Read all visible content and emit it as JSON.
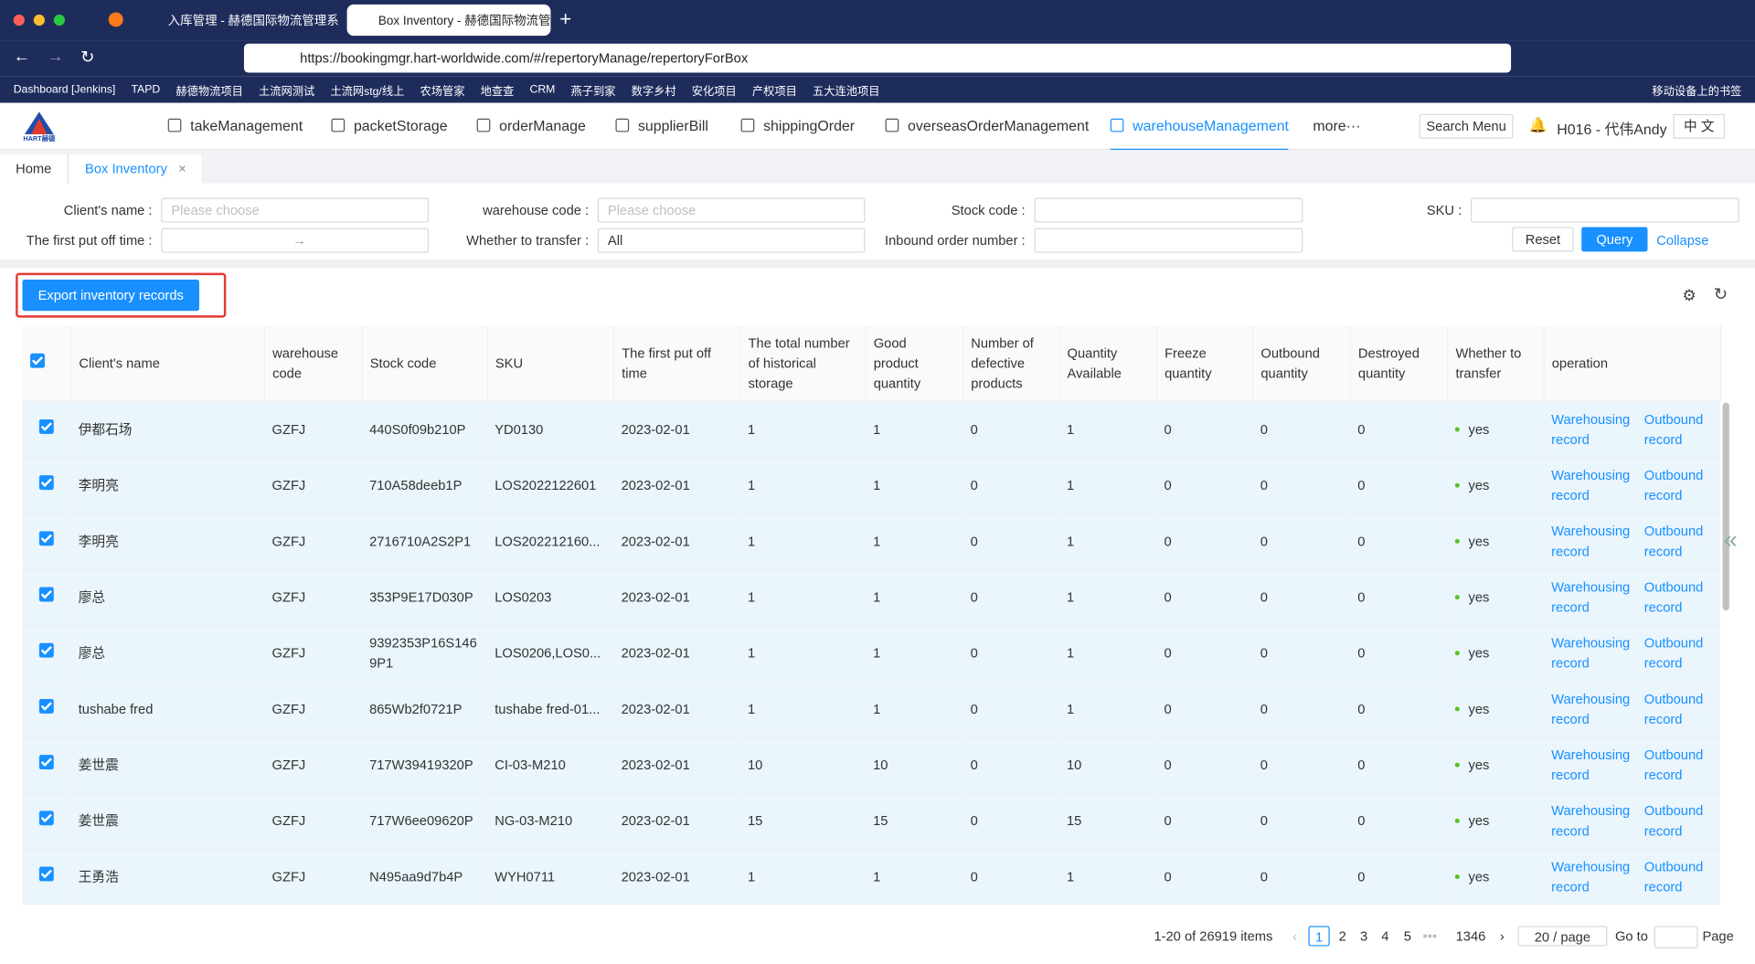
{
  "browser": {
    "tabs": [
      "入库管理 - 赫德国际物流管理系统",
      "Box Inventory - 赫德国际物流管理系统"
    ],
    "url": "https://bookingmgr.hart-worldwide.com/#/repertoryManage/repertoryForBox",
    "bookmarks": [
      "Dashboard [Jenkins]",
      "TAPD",
      "赫德物流项目",
      "土流网测试",
      "土流网stg/线上",
      "农场管家",
      "地查查",
      "CRM",
      "燕子到家",
      "数字乡村",
      "安化项目",
      "产权项目",
      "五大连池项目"
    ],
    "mobile_bookmarks": "移动设备上的书签"
  },
  "nav": {
    "logo": "HART赫德",
    "items": [
      "takeManagement",
      "packetStorage",
      "orderManage",
      "supplierBill",
      "shippingOrder",
      "overseasOrderManagement",
      "warehouseManagement",
      "more···"
    ],
    "active": "warehouseManagement",
    "search": "Search Menu",
    "user": "H016 - 代伟Andy",
    "lang": "中 文"
  },
  "page_tabs": [
    "Home",
    "Box Inventory"
  ],
  "filters": {
    "client_label": "Client's name :",
    "client_placeholder": "Please choose",
    "warehouse_label": "warehouse code :",
    "warehouse_placeholder": "Please choose",
    "stock_label": "Stock code :",
    "sku_label": "SKU :",
    "time_label": "The first put off time :",
    "transfer_label": "Whether to transfer :",
    "transfer_value": "All",
    "inbound_label": "Inbound order number :",
    "reset": "Reset",
    "query": "Query",
    "collapse": "Collapse"
  },
  "export_button": "Export inventory records",
  "table": {
    "headers": [
      "Client's name",
      "warehouse code",
      "Stock code",
      "SKU",
      "The first put off time",
      "The total number of historical storage",
      "Good product quantity",
      "Number of defective products",
      "Quantity Available",
      "Freeze quantity",
      "Outbound quantity",
      "Destroyed quantity",
      "Whether to transfer",
      "operation"
    ],
    "operations": [
      "Warehousing record",
      "Outbound record"
    ],
    "rows": [
      [
        "伊都石场",
        "GZFJ",
        "440S0f09b210P",
        "YD0130",
        "2023-02-01",
        "1",
        "1",
        "0",
        "1",
        "0",
        "0",
        "0",
        "yes"
      ],
      [
        "李明亮",
        "GZFJ",
        "710A58deeb1P",
        "LOS2022122601",
        "2023-02-01",
        "1",
        "1",
        "0",
        "1",
        "0",
        "0",
        "0",
        "yes"
      ],
      [
        "李明亮",
        "GZFJ",
        "2716710A2S2P1",
        "LOS202212160...",
        "2023-02-01",
        "1",
        "1",
        "0",
        "1",
        "0",
        "0",
        "0",
        "yes"
      ],
      [
        "廖总",
        "GZFJ",
        "353P9E17D030P",
        "LOS0203",
        "2023-02-01",
        "1",
        "1",
        "0",
        "1",
        "0",
        "0",
        "0",
        "yes"
      ],
      [
        "廖总",
        "GZFJ",
        "9392353P16S1469P1",
        "LOS0206,LOS0...",
        "2023-02-01",
        "1",
        "1",
        "0",
        "1",
        "0",
        "0",
        "0",
        "yes"
      ],
      [
        "tushabe fred",
        "GZFJ",
        "865Wb2f0721P",
        "tushabe fred-01...",
        "2023-02-01",
        "1",
        "1",
        "0",
        "1",
        "0",
        "0",
        "0",
        "yes"
      ],
      [
        "姜世震",
        "GZFJ",
        "717W39419320P",
        "CI-03-M210",
        "2023-02-01",
        "10",
        "10",
        "0",
        "10",
        "0",
        "0",
        "0",
        "yes"
      ],
      [
        "姜世震",
        "GZFJ",
        "717W6ee09620P",
        "NG-03-M210",
        "2023-02-01",
        "15",
        "15",
        "0",
        "15",
        "0",
        "0",
        "0",
        "yes"
      ],
      [
        "王勇浩",
        "GZFJ",
        "N495aa9d7b4P",
        "WYH0711",
        "2023-02-01",
        "1",
        "1",
        "0",
        "1",
        "0",
        "0",
        "0",
        "yes"
      ]
    ]
  },
  "pagination": {
    "summary": "1-20 of 26919 items",
    "pages": [
      "1",
      "2",
      "3",
      "4",
      "5",
      "•••",
      "1346"
    ],
    "page_size": "20 / page",
    "goto": "Go to",
    "page": "Page"
  }
}
